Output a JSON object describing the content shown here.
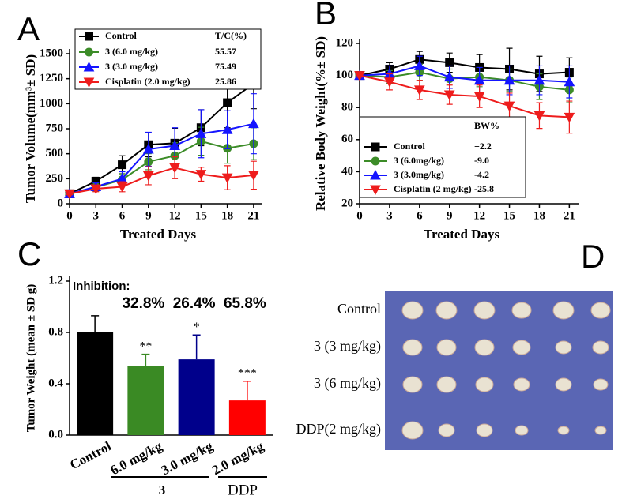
{
  "chart_data": [
    {
      "type": "line",
      "panel": "A",
      "xlabel": "Treated Days",
      "ylabel": "Tumor Volume(mm³± SD)",
      "x": [
        0,
        3,
        6,
        9,
        12,
        15,
        18,
        21
      ],
      "xlim": [
        0,
        22
      ],
      "xticks": [
        0,
        3,
        6,
        9,
        12,
        15,
        18,
        21
      ],
      "ylim": [
        0,
        1500
      ],
      "yticks": [
        0,
        250,
        500,
        750,
        1000,
        1250,
        1500
      ],
      "legend_title": "T/C(%)",
      "series": [
        {
          "name": "Control",
          "color": "#000000",
          "marker": "square",
          "values": [
            100,
            225,
            390,
            590,
            605,
            760,
            1010,
            1200
          ],
          "errors": [
            10,
            40,
            90,
            120,
            150,
            180,
            250,
            250
          ]
        },
        {
          "name": "3  (6.0 mg/kg)",
          "legend_value": "55.57",
          "color": "#3c8c28",
          "marker": "circle",
          "values": [
            100,
            165,
            240,
            420,
            480,
            625,
            555,
            600
          ],
          "errors": [
            10,
            40,
            60,
            80,
            130,
            140,
            150,
            160
          ]
        },
        {
          "name": "3  (3.0 mg/kg)",
          "legend_value": "75.49",
          "color": "#1515ff",
          "marker": "triangle-up",
          "values": [
            100,
            170,
            250,
            545,
            580,
            700,
            740,
            800
          ],
          "errors": [
            10,
            40,
            70,
            170,
            180,
            240,
            190,
            300
          ]
        },
        {
          "name": "Cisplatin  (2.0 mg/kg)",
          "legend_value": "25.86",
          "color": "#ee1c1c",
          "marker": "triangle-down",
          "values": [
            100,
            150,
            170,
            280,
            360,
            295,
            260,
            285
          ],
          "errors": [
            10,
            30,
            50,
            90,
            110,
            70,
            120,
            140
          ]
        }
      ]
    },
    {
      "type": "line",
      "panel": "B",
      "xlabel": "Treated Days",
      "ylabel": "Relative Body Weight(%± SD)",
      "x": [
        0,
        3,
        6,
        9,
        12,
        15,
        18,
        21
      ],
      "xlim": [
        0,
        22
      ],
      "xticks": [
        0,
        3,
        6,
        9,
        12,
        15,
        18,
        21
      ],
      "ylim": [
        20,
        120
      ],
      "yticks": [
        20,
        40,
        60,
        80,
        100,
        120
      ],
      "legend_title": "BW%",
      "series": [
        {
          "name": "Control",
          "legend_value": "+2.2",
          "color": "#000000",
          "marker": "square",
          "values": [
            100,
            104,
            110,
            108,
            105,
            104,
            101,
            102
          ],
          "errors": [
            1,
            4,
            5,
            6,
            8,
            13,
            11,
            9
          ]
        },
        {
          "name": "3   (6.0mg/kg)",
          "legend_value": "-9.0",
          "color": "#3c8c28",
          "marker": "circle",
          "values": [
            100,
            99,
            102,
            98,
            99,
            97,
            93,
            91
          ],
          "errors": [
            1,
            4,
            5,
            6,
            6,
            7,
            8,
            8
          ]
        },
        {
          "name": "3   (3.0mg/kg)",
          "legend_value": "-4.2",
          "color": "#1515ff",
          "marker": "triangle-up",
          "values": [
            100,
            101,
            106,
            99,
            97,
            97,
            97,
            96
          ],
          "errors": [
            1,
            5,
            6,
            7,
            8,
            9,
            9,
            10
          ]
        },
        {
          "name": "Cisplatin (2 mg/kg)",
          "legend_value": "-25.8",
          "color": "#ee1c1c",
          "marker": "triangle-down",
          "values": [
            100,
            96,
            91,
            88,
            87,
            81,
            75,
            74
          ],
          "errors": [
            1,
            5,
            6,
            6,
            7,
            8,
            8,
            10
          ]
        }
      ]
    },
    {
      "type": "bar",
      "panel": "C",
      "ylabel": "Tumor Weight (mean ± SD g)",
      "categories": [
        "Control",
        "6.0 mg/kg",
        "3.0 mg/kg",
        "2.0 mg/kg"
      ],
      "values": [
        0.8,
        0.54,
        0.59,
        0.27
      ],
      "errors": [
        0.13,
        0.09,
        0.19,
        0.15
      ],
      "colors": [
        "#000000",
        "#3a8a24",
        "#00008b",
        "#ff0000"
      ],
      "significance": [
        null,
        "**",
        "*",
        "***"
      ],
      "inhibition_title": "Inhibition:",
      "inhibition": [
        null,
        "32.8%",
        "26.4%",
        "65.8%"
      ],
      "groups": [
        "3",
        "DDP"
      ],
      "ylim": [
        0,
        1.2
      ],
      "yticks": [
        {
          "value": 0,
          "label": "0.0"
        },
        0.4,
        0.8,
        1.2
      ]
    }
  ],
  "photo": {
    "panel": "D",
    "rows": [
      "Control",
      "3 (3 mg/kg)",
      "3 (6 mg/kg)",
      "DDP(2 mg/kg)"
    ]
  }
}
